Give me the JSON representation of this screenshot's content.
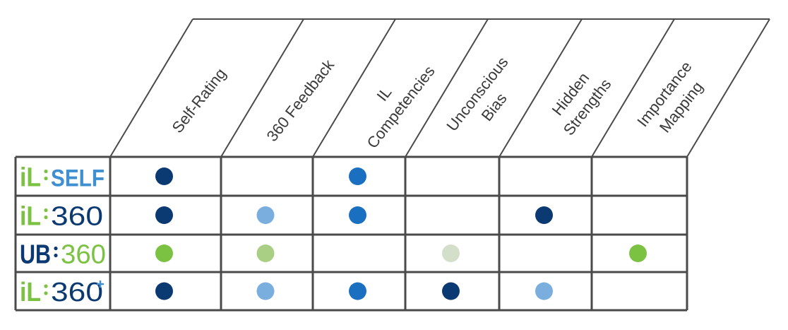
{
  "columns": [
    {
      "id": "self-rating",
      "lines": [
        "Self-Rating"
      ]
    },
    {
      "id": "360-feedback",
      "lines": [
        "360 Feedback"
      ]
    },
    {
      "id": "il-competencies",
      "lines": [
        "IL",
        "Competencies"
      ]
    },
    {
      "id": "unconscious-bias",
      "lines": [
        "Unconscious",
        "Bias"
      ]
    },
    {
      "id": "hidden-strengths",
      "lines": [
        "Hidden",
        "Strengths"
      ]
    },
    {
      "id": "importance-mapping",
      "lines": [
        "Importance",
        "Mapping"
      ]
    }
  ],
  "rows": [
    {
      "id": "il-self",
      "logo": {
        "prefix": "iL",
        "prefix_color": "#7cc242",
        "suffix": "SELF",
        "suffix_color": "#3f8fd1",
        "suffix_style": "bold",
        "dot_color": "#7cc242",
        "plus": false
      },
      "cells": [
        "#0b3a72",
        null,
        "#1a6fc0",
        null,
        null,
        null
      ]
    },
    {
      "id": "il-360",
      "logo": {
        "prefix": "iL",
        "prefix_color": "#7cc242",
        "suffix": "360",
        "suffix_color": "#0b3a72",
        "suffix_style": "thin",
        "dot_color": "#7cc242",
        "plus": false
      },
      "cells": [
        "#0b3a72",
        "#7aaedf",
        "#1a6fc0",
        null,
        "#0b3a72",
        null
      ]
    },
    {
      "id": "ub-360",
      "logo": {
        "prefix": "UB",
        "prefix_color": "#0b3a72",
        "suffix": "360",
        "suffix_color": "#7cc242",
        "suffix_style": "thin",
        "dot_color": "#0b3a72",
        "plus": false
      },
      "cells": [
        "#7cc242",
        "#a9cf85",
        null,
        "#d4dfca",
        null,
        "#7cc242"
      ]
    },
    {
      "id": "il-360-plus",
      "logo": {
        "prefix": "iL",
        "prefix_color": "#7cc242",
        "suffix": "360",
        "suffix_color": "#0b3a72",
        "suffix_style": "thin",
        "dot_color": "#7cc242",
        "plus": true,
        "plus_color": "#3f8fd1"
      },
      "cells": [
        "#0b3a72",
        "#7aaedf",
        "#1a6fc0",
        "#0b3a72",
        "#7aaedf",
        null
      ]
    }
  ],
  "colors": {
    "grid": "#4a4a4a",
    "header_text": "#3a3a3a"
  }
}
